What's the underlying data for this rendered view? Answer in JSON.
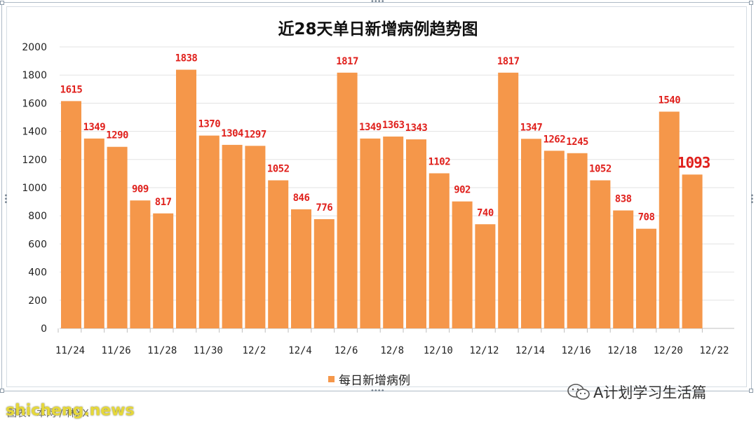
{
  "chart_data": {
    "type": "bar",
    "title": "近28天单日新增病例趋势图",
    "legend": "每日新增病例",
    "legend_position": "bottom",
    "color": "#f5974a",
    "label_color": "#e0211d",
    "grid": true,
    "ylim": [
      0,
      2000
    ],
    "yticks": [
      0,
      200,
      400,
      600,
      800,
      1000,
      1200,
      1400,
      1600,
      1800,
      2000
    ],
    "x_ticks": [
      "11/24",
      "11/26",
      "11/28",
      "11/30",
      "12/2",
      "12/4",
      "12/6",
      "12/8",
      "12/10",
      "12/12",
      "12/14",
      "12/16",
      "12/18",
      "12/20",
      "12/22"
    ],
    "categories": [
      "11/24",
      "11/25",
      "11/26",
      "11/27",
      "11/28",
      "11/29",
      "11/30",
      "12/1",
      "12/2",
      "12/3",
      "12/4",
      "12/5",
      "12/6",
      "12/7",
      "12/8",
      "12/9",
      "12/10",
      "12/11",
      "12/12",
      "12/13",
      "12/14",
      "12/15",
      "12/16",
      "12/17",
      "12/18",
      "12/19",
      "12/20",
      "12/21"
    ],
    "values": [
      1615,
      1349,
      1290,
      909,
      817,
      1838,
      1370,
      1304,
      1297,
      1052,
      846,
      776,
      1817,
      1349,
      1363,
      1343,
      1102,
      902,
      740,
      1817,
      1347,
      1262,
      1245,
      1052,
      838,
      708,
      1540,
      1093
    ],
    "highlight_last": true
  },
  "watermark": {
    "brand": "A计划学习生活篇",
    "site": "shicheng.news",
    "source": "图表：本网 / 林XX"
  }
}
